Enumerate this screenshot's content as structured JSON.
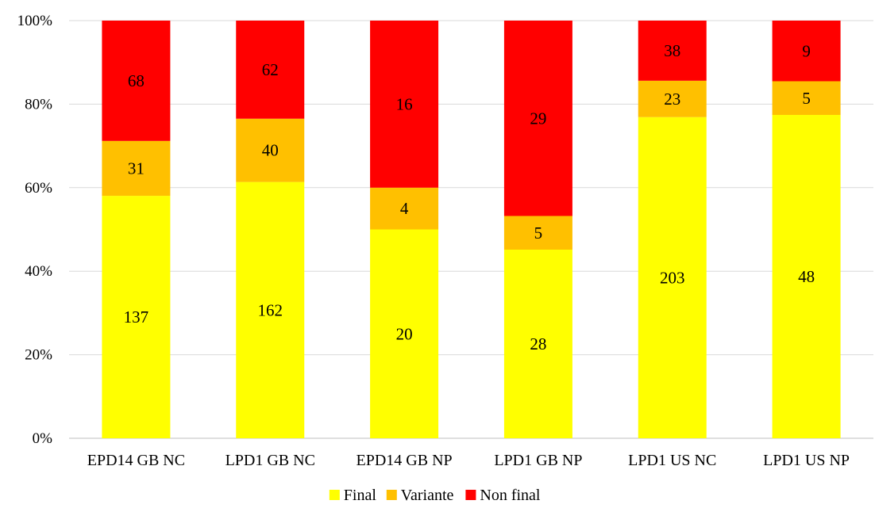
{
  "chart_data": {
    "type": "bar",
    "stacked": "percent",
    "title": "",
    "xlabel": "",
    "ylabel": "",
    "ylim": [
      0,
      100
    ],
    "y_ticks": [
      "0%",
      "20%",
      "40%",
      "60%",
      "80%",
      "100%"
    ],
    "grid": true,
    "legend_position": "bottom",
    "categories": [
      "EPD14 GB NC",
      "LPD1 GB NC",
      "EPD14 GB NP",
      "LPD1 GB NP",
      "LPD1 US NC",
      "LPD1 US NP"
    ],
    "series": [
      {
        "name": "Final",
        "color": "#ffff00",
        "values": [
          137,
          162,
          20,
          28,
          203,
          48
        ]
      },
      {
        "name": "Variante",
        "color": "#ffc000",
        "values": [
          31,
          40,
          4,
          5,
          23,
          5
        ]
      },
      {
        "name": "Non final",
        "color": "#ff0000",
        "values": [
          68,
          62,
          16,
          29,
          38,
          9
        ]
      }
    ]
  }
}
